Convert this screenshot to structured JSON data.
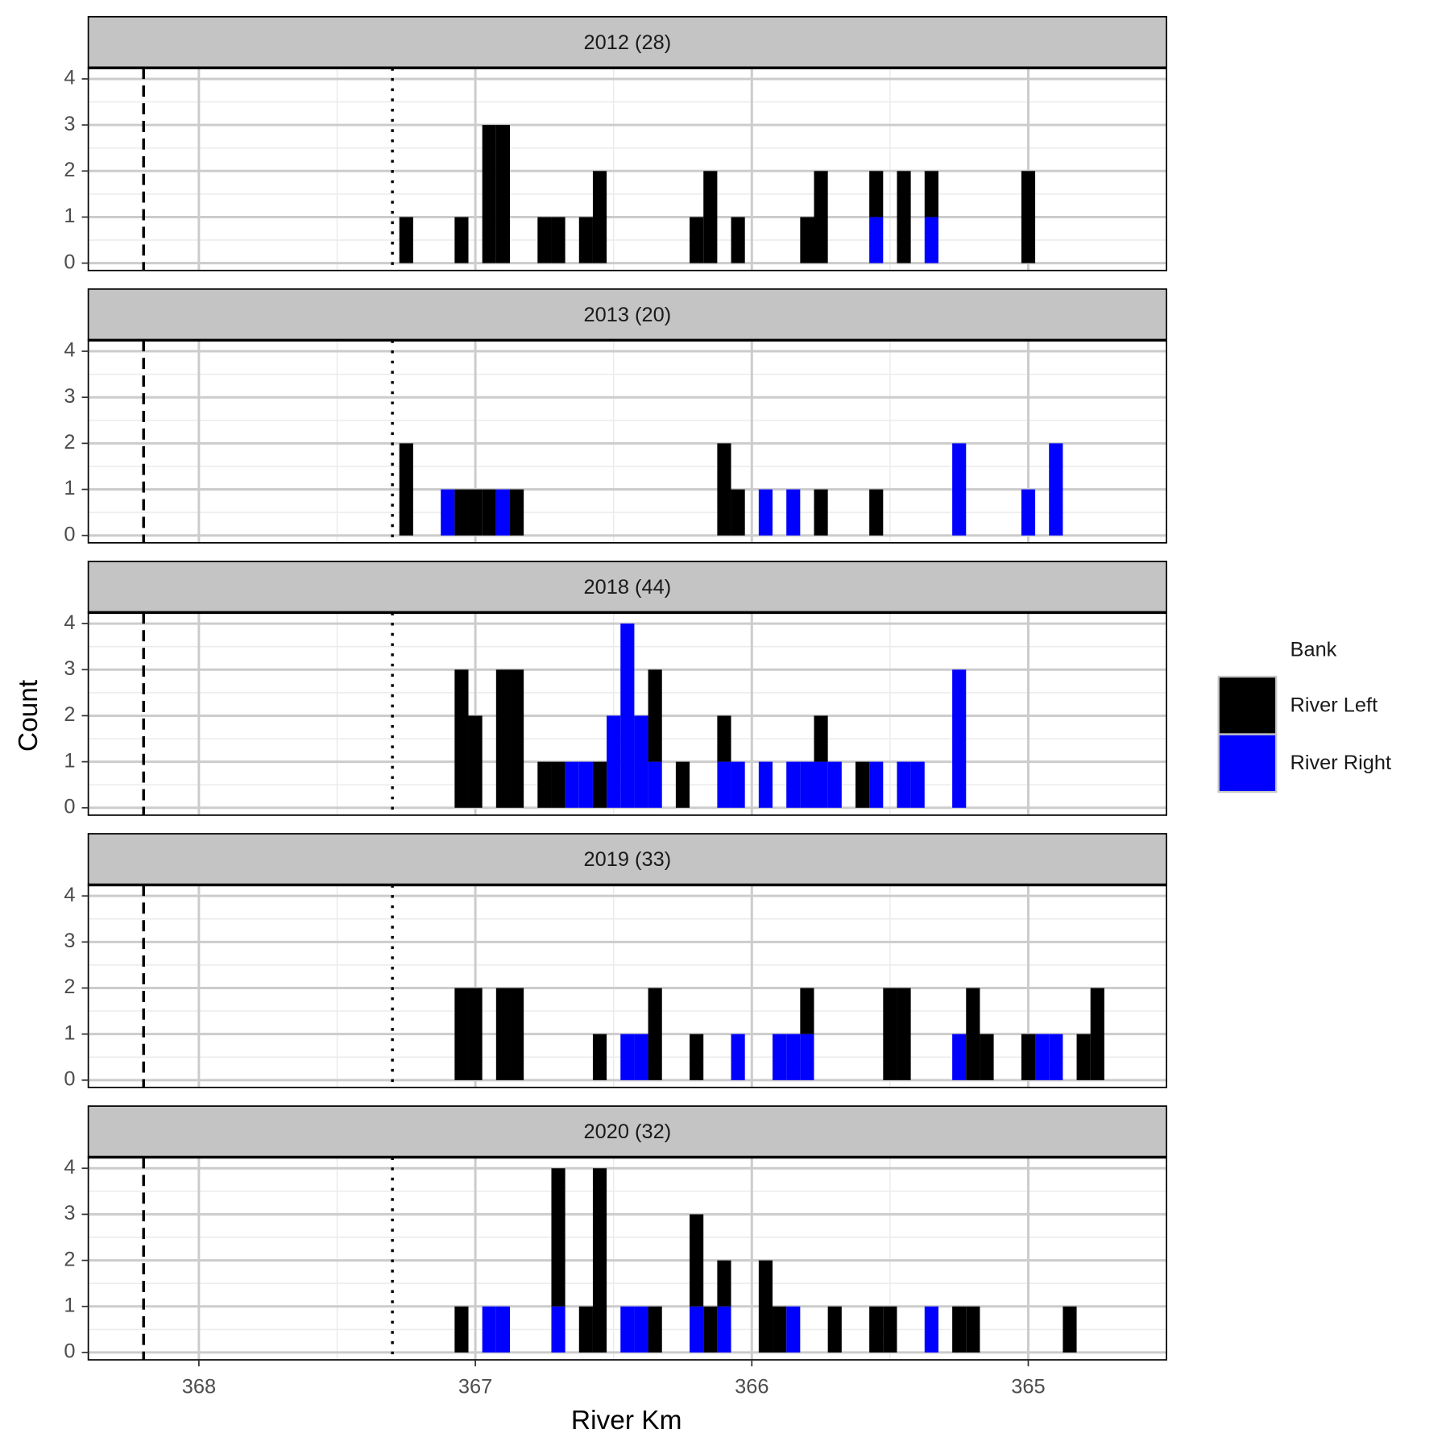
{
  "chart_data": {
    "type": "histogram",
    "xlabel": "River Km",
    "ylabel": "Count",
    "legend_title": "Bank",
    "legend": "right",
    "grid": true,
    "xlim": [
      368.4,
      364.5
    ],
    "xticks": [
      368,
      367,
      366,
      365
    ],
    "ylim": [
      -0.16,
      4.24
    ],
    "yticks": [
      0,
      1,
      2,
      3,
      4
    ],
    "vlines": [
      {
        "x": 368.2,
        "style": "dashed"
      },
      {
        "x": 367.3,
        "style": "dotted"
      }
    ],
    "bins": [
      368.225,
      368.175,
      368.125,
      368.075,
      368.025,
      367.975,
      367.925,
      367.875,
      367.825,
      367.775,
      367.725,
      367.675,
      367.625,
      367.575,
      367.525,
      367.475,
      367.425,
      367.375,
      367.325,
      367.275,
      367.225,
      367.175,
      367.125,
      367.075,
      367.025,
      366.975,
      366.925,
      366.875,
      366.825,
      366.775,
      366.725,
      366.675,
      366.625,
      366.575,
      366.525,
      366.475,
      366.425,
      366.375,
      366.325,
      366.275,
      366.225,
      366.175,
      366.125,
      366.075,
      366.025,
      365.975,
      365.925,
      365.875,
      365.825,
      365.775,
      365.725,
      365.675,
      365.625,
      365.575,
      365.525,
      365.475,
      365.425,
      365.375,
      365.325,
      365.275,
      365.225,
      365.175,
      365.125,
      365.075,
      365.025,
      364.975,
      364.925,
      364.875,
      364.825,
      364.775,
      364.725,
      364.675
    ],
    "panels": [
      {
        "title": "2012 (28)",
        "series": [
          {
            "name": "River Left",
            "color": "#000000",
            "values": [
              0,
              0,
              0,
              0,
              0,
              0,
              0,
              0,
              0,
              0,
              0,
              0,
              0,
              0,
              0,
              0,
              0,
              0,
              0,
              1,
              0,
              0,
              0,
              1,
              0,
              3,
              3,
              0,
              0,
              1,
              1,
              0,
              1,
              2,
              0,
              0,
              0,
              0,
              0,
              0,
              1,
              2,
              0,
              1,
              0,
              0,
              0,
              0,
              1,
              2,
              0,
              0,
              0,
              1,
              0,
              2,
              0,
              1,
              0,
              0,
              0,
              0,
              0,
              0,
              2,
              0,
              0,
              0,
              0,
              0,
              0
            ]
          },
          {
            "name": "River Right",
            "color": "#0000ff",
            "values": [
              0,
              0,
              0,
              0,
              0,
              0,
              0,
              0,
              0,
              0,
              0,
              0,
              0,
              0,
              0,
              0,
              0,
              0,
              0,
              0,
              0,
              0,
              0,
              0,
              0,
              0,
              0,
              0,
              0,
              0,
              0,
              0,
              0,
              0,
              0,
              0,
              0,
              0,
              0,
              0,
              0,
              0,
              0,
              0,
              0,
              0,
              0,
              0,
              0,
              0,
              0,
              0,
              0,
              1,
              0,
              0,
              0,
              1,
              0,
              0,
              0,
              0,
              0,
              0,
              0,
              0,
              0,
              0,
              0,
              0,
              0
            ]
          }
        ]
      },
      {
        "title": "2013 (20)",
        "series": [
          {
            "name": "River Left",
            "color": "#000000",
            "values": [
              0,
              0,
              0,
              0,
              0,
              0,
              0,
              0,
              0,
              0,
              0,
              0,
              0,
              0,
              0,
              0,
              0,
              0,
              0,
              2,
              0,
              0,
              0,
              1,
              1,
              1,
              0,
              1,
              0,
              0,
              0,
              0,
              0,
              0,
              0,
              0,
              0,
              0,
              0,
              0,
              0,
              0,
              2,
              1,
              0,
              0,
              0,
              0,
              0,
              1,
              0,
              0,
              0,
              1,
              0,
              0,
              0,
              0,
              0,
              0,
              0,
              0,
              0,
              0,
              0,
              0,
              0,
              0,
              0,
              0,
              0
            ]
          },
          {
            "name": "River Right",
            "color": "#0000ff",
            "values": [
              0,
              0,
              0,
              0,
              0,
              0,
              0,
              0,
              0,
              0,
              0,
              0,
              0,
              0,
              0,
              0,
              0,
              0,
              0,
              0,
              0,
              0,
              1,
              0,
              0,
              0,
              1,
              0,
              0,
              0,
              0,
              0,
              0,
              0,
              0,
              0,
              0,
              0,
              0,
              0,
              0,
              0,
              0,
              0,
              0,
              1,
              0,
              1,
              0,
              0,
              0,
              0,
              0,
              0,
              0,
              0,
              0,
              0,
              0,
              2,
              0,
              0,
              0,
              0,
              1,
              0,
              2,
              0,
              0,
              0,
              0
            ]
          }
        ]
      },
      {
        "title": "2018 (44)",
        "series": [
          {
            "name": "River Left",
            "color": "#000000",
            "values": [
              0,
              0,
              0,
              0,
              0,
              0,
              0,
              0,
              0,
              0,
              0,
              0,
              0,
              0,
              0,
              0,
              0,
              0,
              0,
              0,
              0,
              0,
              0,
              3,
              2,
              0,
              3,
              3,
              0,
              1,
              1,
              0,
              0,
              1,
              0,
              0,
              0,
              2,
              0,
              1,
              0,
              0,
              1,
              0,
              0,
              0,
              0,
              0,
              0,
              1,
              0,
              0,
              1,
              0,
              0,
              0,
              0,
              0,
              0,
              0,
              0,
              0,
              0,
              0,
              0,
              0,
              0,
              0,
              0,
              0,
              0
            ]
          },
          {
            "name": "River Right",
            "color": "#0000ff",
            "values": [
              0,
              0,
              0,
              0,
              0,
              0,
              0,
              0,
              0,
              0,
              0,
              0,
              0,
              0,
              0,
              0,
              0,
              0,
              0,
              0,
              0,
              0,
              0,
              0,
              0,
              0,
              0,
              0,
              0,
              0,
              0,
              1,
              1,
              0,
              2,
              4,
              2,
              1,
              0,
              0,
              0,
              0,
              1,
              1,
              0,
              1,
              0,
              1,
              1,
              1,
              1,
              0,
              0,
              1,
              0,
              1,
              1,
              0,
              0,
              3,
              0,
              0,
              0,
              0,
              0,
              0,
              0,
              0,
              0,
              0,
              0
            ]
          }
        ]
      },
      {
        "title": "2019 (33)",
        "series": [
          {
            "name": "River Left",
            "color": "#000000",
            "values": [
              0,
              0,
              0,
              0,
              0,
              0,
              0,
              0,
              0,
              0,
              0,
              0,
              0,
              0,
              0,
              0,
              0,
              0,
              0,
              0,
              0,
              0,
              0,
              2,
              2,
              0,
              2,
              2,
              0,
              0,
              0,
              0,
              0,
              1,
              0,
              0,
              0,
              2,
              0,
              0,
              1,
              0,
              0,
              0,
              0,
              0,
              0,
              0,
              1,
              0,
              0,
              0,
              0,
              0,
              2,
              2,
              0,
              0,
              0,
              0,
              2,
              1,
              0,
              0,
              1,
              0,
              0,
              0,
              1,
              2,
              0
            ]
          },
          {
            "name": "River Right",
            "color": "#0000ff",
            "values": [
              0,
              0,
              0,
              0,
              0,
              0,
              0,
              0,
              0,
              0,
              0,
              0,
              0,
              0,
              0,
              0,
              0,
              0,
              0,
              0,
              0,
              0,
              0,
              0,
              0,
              0,
              0,
              0,
              0,
              0,
              0,
              0,
              0,
              0,
              0,
              1,
              1,
              0,
              0,
              0,
              0,
              0,
              0,
              1,
              0,
              0,
              1,
              1,
              1,
              0,
              0,
              0,
              0,
              0,
              0,
              0,
              0,
              0,
              0,
              1,
              0,
              0,
              0,
              0,
              0,
              1,
              1,
              0,
              0,
              0,
              0
            ]
          }
        ]
      },
      {
        "title": "2020 (32)",
        "series": [
          {
            "name": "River Left",
            "color": "#000000",
            "values": [
              0,
              0,
              0,
              0,
              0,
              0,
              0,
              0,
              0,
              0,
              0,
              0,
              0,
              0,
              0,
              0,
              0,
              0,
              0,
              0,
              0,
              0,
              0,
              1,
              0,
              0,
              0,
              0,
              0,
              0,
              3,
              0,
              1,
              4,
              0,
              0,
              0,
              1,
              0,
              0,
              2,
              1,
              1,
              0,
              0,
              2,
              1,
              0,
              0,
              0,
              1,
              0,
              0,
              1,
              1,
              0,
              0,
              0,
              0,
              1,
              1,
              0,
              0,
              0,
              0,
              0,
              0,
              1,
              0,
              0,
              0
            ]
          },
          {
            "name": "River Right",
            "color": "#0000ff",
            "values": [
              0,
              0,
              0,
              0,
              0,
              0,
              0,
              0,
              0,
              0,
              0,
              0,
              0,
              0,
              0,
              0,
              0,
              0,
              0,
              0,
              0,
              0,
              0,
              0,
              0,
              1,
              1,
              0,
              0,
              0,
              1,
              0,
              0,
              0,
              0,
              1,
              1,
              0,
              0,
              0,
              1,
              0,
              1,
              0,
              0,
              0,
              0,
              1,
              0,
              0,
              0,
              0,
              0,
              0,
              0,
              0,
              0,
              1,
              0,
              0,
              0,
              0,
              0,
              0,
              0,
              0,
              0,
              0,
              0,
              0,
              0
            ]
          }
        ]
      }
    ]
  }
}
